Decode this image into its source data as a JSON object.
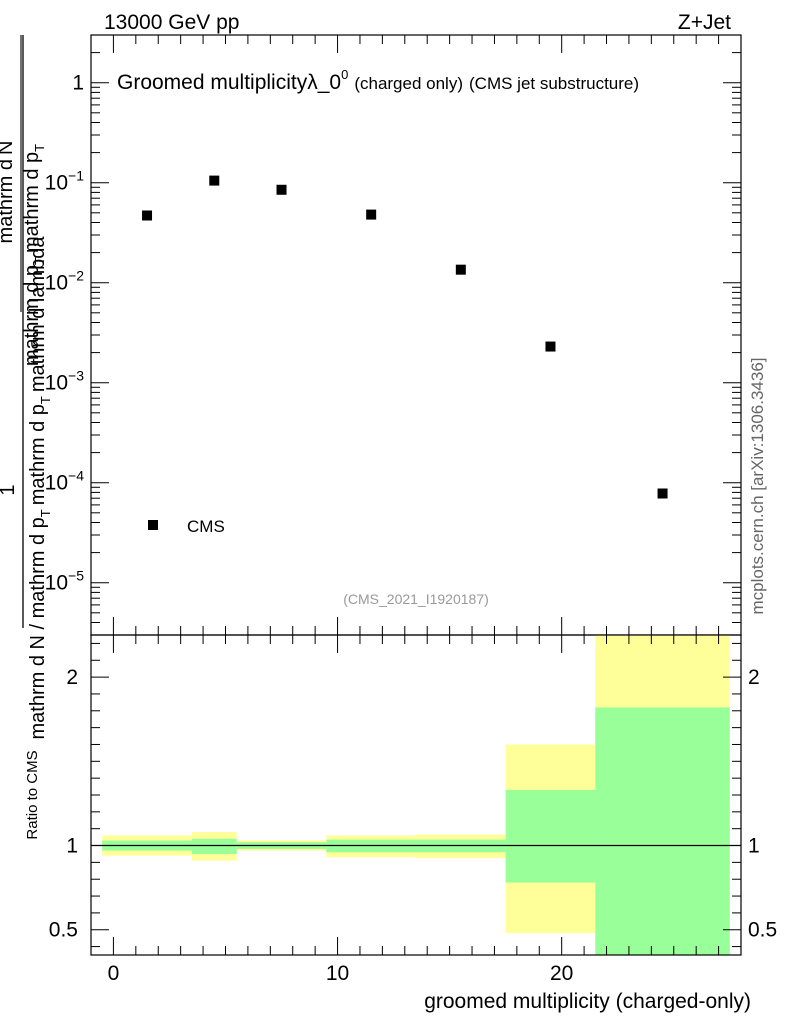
{
  "header": {
    "energy_label": "13000 GeV pp",
    "process_label": "Z+Jet"
  },
  "side_label": "mcplots.cern.ch [arXiv:1306.3436]",
  "chart_data": [
    {
      "type": "scatter",
      "title_main": "Groomed multiplicityλ_0",
      "title_sup": "0",
      "title_small": "(charged only)",
      "title_tail": "(CMS jet substructure)",
      "analysis_id": "(CMS_2021_I1920187)",
      "ylabel_lines": [
        "1",
        "mathrm d N / mathrm d p",
        "T",
        "mathrm d p",
        "T",
        "mathrm d lambda",
        "mathrm d",
        "N",
        "mathrm d p",
        "T",
        "mathrm d p",
        "T"
      ],
      "y_scale": "log",
      "ylim": [
        3e-06,
        3
      ],
      "xlim": [
        -1,
        28
      ],
      "y_ticks": [
        {
          "value": 1,
          "base": "1",
          "exp": ""
        },
        {
          "value": 0.1,
          "base": "10",
          "exp": "−1"
        },
        {
          "value": 0.01,
          "base": "10",
          "exp": "−2"
        },
        {
          "value": 0.001,
          "base": "10",
          "exp": "−3"
        },
        {
          "value": 0.0001,
          "base": "10",
          "exp": "−4"
        },
        {
          "value": 1e-05,
          "base": "10",
          "exp": "−5"
        }
      ],
      "series": [
        {
          "name": "CMS",
          "x": [
            1.5,
            4.5,
            7.5,
            11.5,
            15.5,
            19.5,
            24.5
          ],
          "y": [
            0.047,
            0.105,
            0.085,
            0.048,
            0.0135,
            0.0023,
            7.8e-05
          ]
        }
      ],
      "legend": {
        "label": "CMS",
        "placement": "bottom-left"
      }
    },
    {
      "type": "area",
      "ylabel": "Ratio to CMS",
      "xlabel": "groomed multiplicity (charged-only)",
      "ylim": [
        0.35,
        2.25
      ],
      "xlim": [
        -1,
        28
      ],
      "x_ticks": [
        0,
        10,
        20
      ],
      "y_ticks": [
        {
          "value": 0.5,
          "label": "0.5"
        },
        {
          "value": 1,
          "label": "1"
        },
        {
          "value": 2,
          "label": "2"
        }
      ],
      "reference_line": 1,
      "bins": [
        {
          "x0": -0.5,
          "x1": 3.5,
          "outer_lo": 0.94,
          "outer_hi": 1.06,
          "inner_lo": 0.97,
          "inner_hi": 1.03
        },
        {
          "x0": 3.5,
          "x1": 5.5,
          "outer_lo": 0.91,
          "outer_hi": 1.08,
          "inner_lo": 0.95,
          "inner_hi": 1.04
        },
        {
          "x0": 5.5,
          "x1": 9.5,
          "outer_lo": 0.97,
          "outer_hi": 1.03,
          "inner_lo": 0.98,
          "inner_hi": 1.02
        },
        {
          "x0": 9.5,
          "x1": 13.5,
          "outer_lo": 0.93,
          "outer_hi": 1.06,
          "inner_lo": 0.96,
          "inner_hi": 1.035
        },
        {
          "x0": 13.5,
          "x1": 17.5,
          "outer_lo": 0.925,
          "outer_hi": 1.065,
          "inner_lo": 0.96,
          "inner_hi": 1.035
        },
        {
          "x0": 17.5,
          "x1": 21.5,
          "outer_lo": 0.48,
          "outer_hi": 1.6,
          "inner_lo": 0.78,
          "inner_hi": 1.33
        },
        {
          "x0": 21.5,
          "x1": 27.5,
          "outer_lo": 0.35,
          "outer_hi": 2.25,
          "inner_lo": 0.35,
          "inner_hi": 1.82
        }
      ],
      "colors": {
        "outer_band": "#ffff99",
        "inner_band": "#99ff99"
      }
    }
  ]
}
